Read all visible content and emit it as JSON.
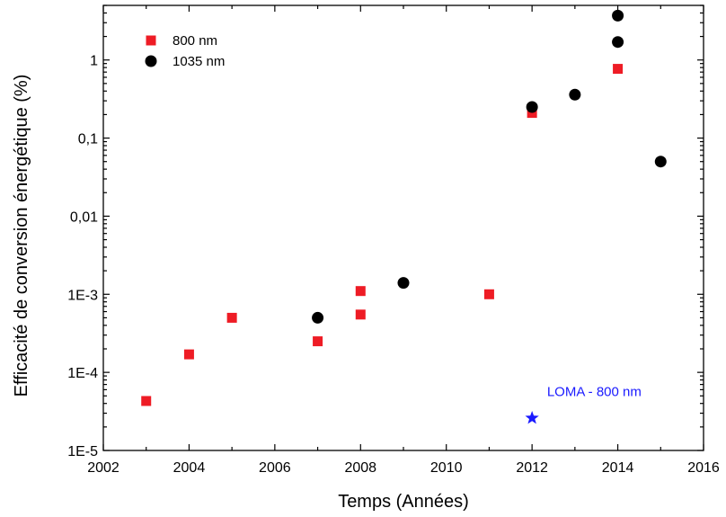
{
  "chart_data": {
    "type": "scatter",
    "title": "",
    "xlabel": "Temps (Années)",
    "ylabel": "Efficacité de conversion énergétique (%)",
    "xlim": [
      2002,
      2016
    ],
    "ylim": [
      1e-05,
      5
    ],
    "yscale": "log",
    "grid": false,
    "legend_position": "top-left",
    "x_ticks": [
      "2002",
      "2004",
      "2006",
      "2008",
      "2010",
      "2012",
      "2014",
      "2016"
    ],
    "y_ticks": [
      {
        "value": 1e-05,
        "label": "1E-5"
      },
      {
        "value": 0.0001,
        "label": "1E-4"
      },
      {
        "value": 0.001,
        "label": "1E-3"
      },
      {
        "value": 0.01,
        "label": "0,01"
      },
      {
        "value": 0.1,
        "label": "0,1"
      },
      {
        "value": 1,
        "label": "1"
      }
    ],
    "series": [
      {
        "name": "800 nm",
        "marker": "square",
        "color": "#ee1c25",
        "points": [
          {
            "x": 2003,
            "y": 4.3e-05
          },
          {
            "x": 2004,
            "y": 0.00017
          },
          {
            "x": 2005,
            "y": 0.0005
          },
          {
            "x": 2007,
            "y": 0.00025
          },
          {
            "x": 2008,
            "y": 0.00055
          },
          {
            "x": 2008,
            "y": 0.0011
          },
          {
            "x": 2011,
            "y": 0.001
          },
          {
            "x": 2012,
            "y": 0.21
          },
          {
            "x": 2014,
            "y": 0.77
          }
        ]
      },
      {
        "name": "1035 nm",
        "marker": "circle",
        "color": "#000000",
        "points": [
          {
            "x": 2007,
            "y": 0.0005
          },
          {
            "x": 2009,
            "y": 0.0014
          },
          {
            "x": 2012,
            "y": 0.25
          },
          {
            "x": 2013,
            "y": 0.36
          },
          {
            "x": 2014,
            "y": 1.7
          },
          {
            "x": 2014,
            "y": 3.7
          },
          {
            "x": 2015,
            "y": 0.05
          }
        ]
      },
      {
        "name": "",
        "marker": "star",
        "color": "#1a1aff",
        "points": [
          {
            "x": 2012,
            "y": 2.6e-05
          }
        ]
      }
    ],
    "annotations": [
      {
        "text": "LOMA - 800 nm",
        "x": 2012.35,
        "y": 5e-05,
        "color": "#1a1aff"
      }
    ]
  }
}
